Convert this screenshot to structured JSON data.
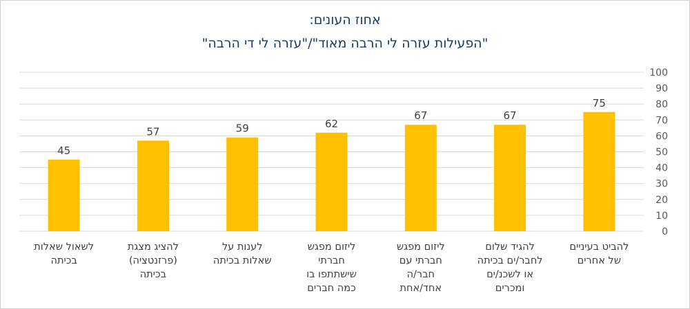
{
  "chart_data": {
    "type": "bar",
    "title": "אחוז העונים:",
    "subtitle": "\"הפעילות עזרה לי הרבה מאוד\"/\"עזרה לי די הרבה\"",
    "categories": [
      [
        "להביט בעיניים",
        "של אחרים"
      ],
      [
        "להגיד שלום",
        "לחבר/ים בכיתה",
        "או לשכנ/ים",
        "ומכרים"
      ],
      [
        "ליזום מפגש",
        "חברתי עם",
        "חבר/ה",
        "אחד/אחת"
      ],
      [
        "ליזום מפגש",
        "חברתי",
        "שישתתפו בו",
        "כמה חברים"
      ],
      [
        "לענות על",
        "שאלות בכיתה"
      ],
      [
        "להציג מצגת",
        "(פרזנטציה)",
        "בכיתה"
      ],
      [
        "לשאול שאלות",
        "בכיתה"
      ]
    ],
    "values": [
      75,
      67,
      67,
      62,
      59,
      57,
      45
    ],
    "ylim": [
      0,
      100
    ],
    "yticks": [
      "0",
      "10",
      "20",
      "30",
      "40",
      "50",
      "60",
      "70",
      "80",
      "90",
      "100"
    ],
    "y_axis_side": "right",
    "category_order": "right-to-left",
    "grid": true,
    "data_labels": true,
    "bar_color": "#FFC000",
    "gridline_color": "#D9D9D9",
    "title_color": "#1F3864"
  }
}
